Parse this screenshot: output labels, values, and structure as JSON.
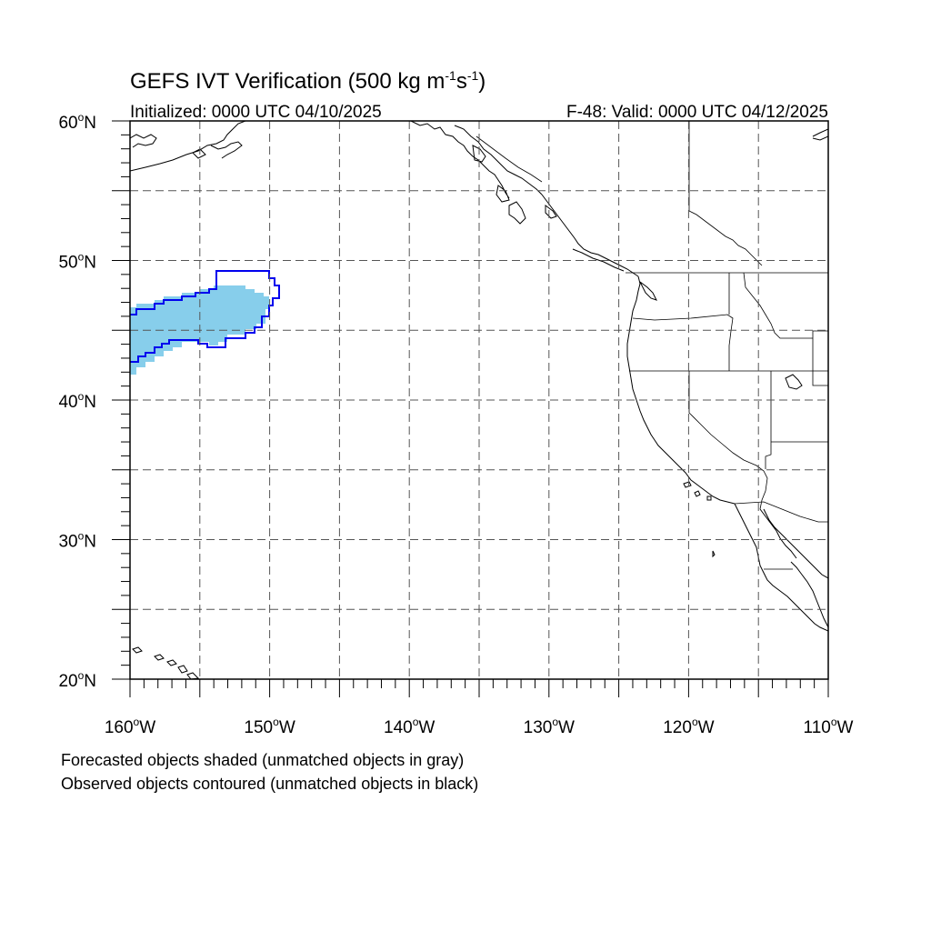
{
  "title": {
    "main": "GEFS IVT Verification (500 kg m",
    "sup1": "-1",
    "mid": "s",
    "sup2": "-1",
    "close": ")"
  },
  "init_label": "Initialized: 0000 UTC 04/10/2025",
  "valid_label": "F-48: Valid: 0000 UTC 04/12/2025",
  "axes": {
    "lon_range": [
      -160,
      -110
    ],
    "lat_range": [
      20,
      60
    ],
    "grid": true,
    "grid_lon_step": 5,
    "grid_lat_step": 5,
    "x_ticks": [
      {
        "lon": -160,
        "num": "160",
        "hemi": "W"
      },
      {
        "lon": -150,
        "num": "150",
        "hemi": "W"
      },
      {
        "lon": -140,
        "num": "140",
        "hemi": "W"
      },
      {
        "lon": -130,
        "num": "130",
        "hemi": "W"
      },
      {
        "lon": -120,
        "num": "120",
        "hemi": "W"
      },
      {
        "lon": -110,
        "num": "110",
        "hemi": "W"
      }
    ],
    "y_ticks": [
      {
        "lat": 60,
        "num": "60",
        "hemi": "N"
      },
      {
        "lat": 50,
        "num": "50",
        "hemi": "N"
      },
      {
        "lat": 40,
        "num": "40",
        "hemi": "N"
      },
      {
        "lat": 30,
        "num": "30",
        "hemi": "N"
      },
      {
        "lat": 20,
        "num": "20",
        "hemi": "N"
      }
    ],
    "degree_symbol": "o"
  },
  "colors": {
    "forecast_fill": "#87ceeb",
    "observed_contour": "#0000ee"
  },
  "caption": {
    "line1": "Forecasted objects shaded (unmatched objects in gray)",
    "line2": "Observed objects contoured (unmatched objects in black)"
  }
}
